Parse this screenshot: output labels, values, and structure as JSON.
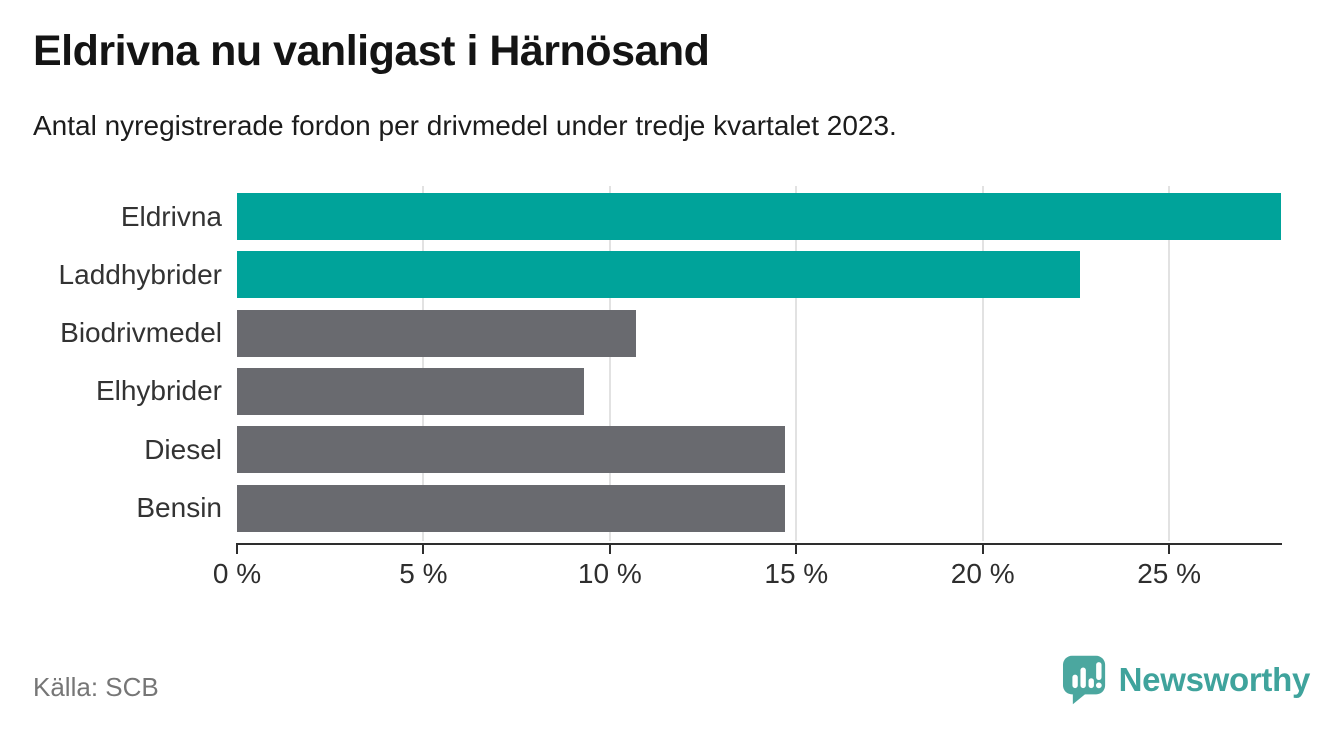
{
  "header": {
    "title": "Eldrivna nu vanligast i Härnösand",
    "subtitle": "Antal nyregistrerade fordon per drivmedel under tredje kvartalet 2023."
  },
  "footer": {
    "source": "Källa: SCB",
    "brand": "Newsworthy",
    "brand_icon": "bar-chart-speech-bubble"
  },
  "colors": {
    "accent_teal": "#00a39a",
    "neutral_gray": "#696a6f",
    "brand_teal": "#3fa39c",
    "brand_icon_teal": "#4ba79f"
  },
  "chart_data": {
    "type": "bar",
    "orientation": "horizontal",
    "title": "Eldrivna nu vanligast i Härnösand",
    "subtitle": "Antal nyregistrerade fordon per drivmedel under tredje kvartalet 2023.",
    "categories": [
      "Eldrivna",
      "Laddhybrider",
      "Biodrivmedel",
      "Elhybrider",
      "Diesel",
      "Bensin"
    ],
    "values": [
      28.0,
      22.6,
      10.7,
      9.3,
      14.7,
      14.7
    ],
    "unit": "%",
    "bar_colors": [
      "#00a39a",
      "#00a39a",
      "#696a6f",
      "#696a6f",
      "#696a6f",
      "#696a6f"
    ],
    "x_ticks": [
      "0 %",
      "5 %",
      "10 %",
      "15 %",
      "20 %",
      "25 %"
    ],
    "x_tick_values": [
      0,
      5,
      10,
      15,
      20,
      25
    ],
    "xlim": [
      0,
      28
    ],
    "grid": true,
    "legend": "none",
    "highlight_note": "Eldrivna and Laddhybrider bars highlighted in teal, others gray"
  }
}
